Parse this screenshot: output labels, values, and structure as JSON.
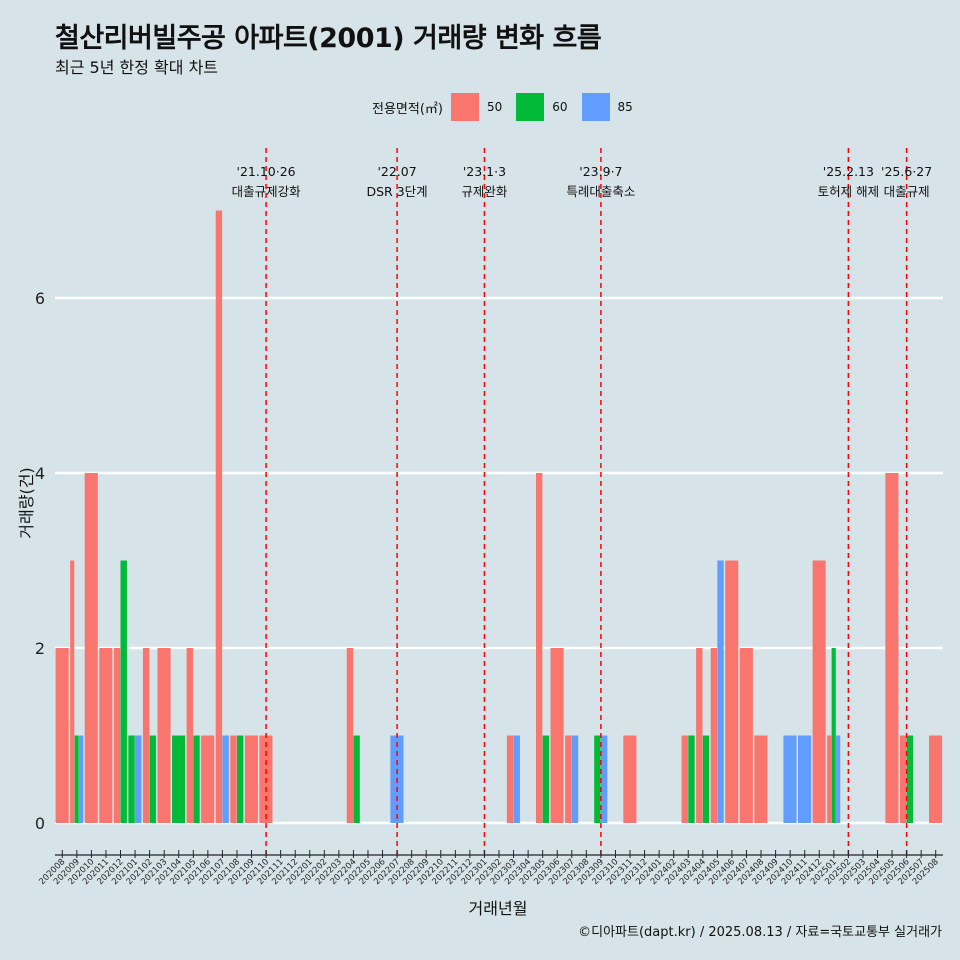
{
  "title": "철산리버빌주공 아파트(2001) 거래량 변화 흐름",
  "subtitle": "최근 5년 한정 확대 차트",
  "caption": "©디아파트(dapt.kr) / 2025.08.13 / 자료=국토교통부 실거래가",
  "colors": {
    "background": "#d6e4ea",
    "50": "#f8766d",
    "60": "#00ba38",
    "85": "#619cff",
    "event_line": "#ff0000"
  },
  "chart_data": {
    "type": "bar",
    "xlabel": "거래년월",
    "ylabel": "거래량(건)",
    "ylim": [
      0,
      7
    ],
    "yticks": [
      0,
      2,
      4,
      6
    ],
    "grid": true,
    "legend_title": "전용면적(㎡)",
    "legend_position": "top",
    "categories": [
      "202008",
      "202009",
      "202010",
      "202011",
      "202012",
      "202101",
      "202102",
      "202103",
      "202104",
      "202105",
      "202106",
      "202107",
      "202108",
      "202109",
      "202110",
      "202111",
      "202112",
      "202201",
      "202202",
      "202203",
      "202204",
      "202205",
      "202206",
      "202207",
      "202208",
      "202209",
      "202210",
      "202211",
      "202212",
      "202301",
      "202302",
      "202303",
      "202304",
      "202305",
      "202306",
      "202307",
      "202308",
      "202309",
      "202310",
      "202311",
      "202312",
      "202401",
      "202402",
      "202403",
      "202404",
      "202405",
      "202406",
      "202407",
      "202408",
      "202409",
      "202410",
      "202411",
      "202412",
      "202501",
      "202502",
      "202503",
      "202504",
      "202505",
      "202506",
      "202507",
      "202508"
    ],
    "series": [
      {
        "name": "50",
        "values": [
          2,
          3,
          4,
          2,
          2,
          0,
          2,
          2,
          0,
          2,
          1,
          7,
          1,
          1,
          1,
          0,
          0,
          0,
          0,
          0,
          2,
          0,
          0,
          0,
          0,
          0,
          0,
          0,
          0,
          0,
          0,
          1,
          0,
          4,
          2,
          1,
          0,
          0,
          0,
          1,
          0,
          0,
          0,
          1,
          2,
          2,
          3,
          2,
          1,
          0,
          0,
          0,
          3,
          1,
          0,
          0,
          0,
          4,
          1,
          0,
          1
        ]
      },
      {
        "name": "60",
        "values": [
          0,
          1,
          0,
          0,
          3,
          1,
          1,
          0,
          1,
          1,
          0,
          0,
          1,
          0,
          0,
          0,
          0,
          0,
          0,
          0,
          1,
          0,
          0,
          0,
          0,
          0,
          0,
          0,
          0,
          0,
          0,
          0,
          0,
          1,
          0,
          0,
          0,
          1,
          0,
          0,
          0,
          0,
          0,
          1,
          1,
          0,
          0,
          0,
          0,
          0,
          0,
          0,
          0,
          2,
          0,
          0,
          0,
          0,
          1,
          0,
          0
        ]
      },
      {
        "name": "85",
        "values": [
          0,
          1,
          0,
          0,
          0,
          1,
          0,
          0,
          0,
          0,
          0,
          1,
          0,
          0,
          0,
          0,
          0,
          0,
          0,
          0,
          0,
          0,
          0,
          1,
          0,
          0,
          0,
          0,
          0,
          0,
          0,
          1,
          0,
          0,
          0,
          1,
          0,
          1,
          0,
          0,
          0,
          0,
          0,
          0,
          0,
          3,
          0,
          0,
          0,
          0,
          1,
          1,
          0,
          1,
          0,
          0,
          0,
          0,
          0,
          0,
          0
        ]
      }
    ],
    "events": [
      {
        "category": "202110",
        "date": "'21.10·26",
        "label": "대출규제강화"
      },
      {
        "category": "202207",
        "date": "'22.07",
        "label": "DSR 3단계"
      },
      {
        "category": "202301",
        "date": "'23.1·3",
        "label": "규제완화"
      },
      {
        "category": "202309",
        "date": "'23.9·7",
        "label": "특례대출축소"
      },
      {
        "category": "202502",
        "date": "'25.2.13",
        "label": "토허제 해제"
      },
      {
        "category": "202506",
        "date": "'25.6·27",
        "label": "대출규제"
      }
    ]
  }
}
